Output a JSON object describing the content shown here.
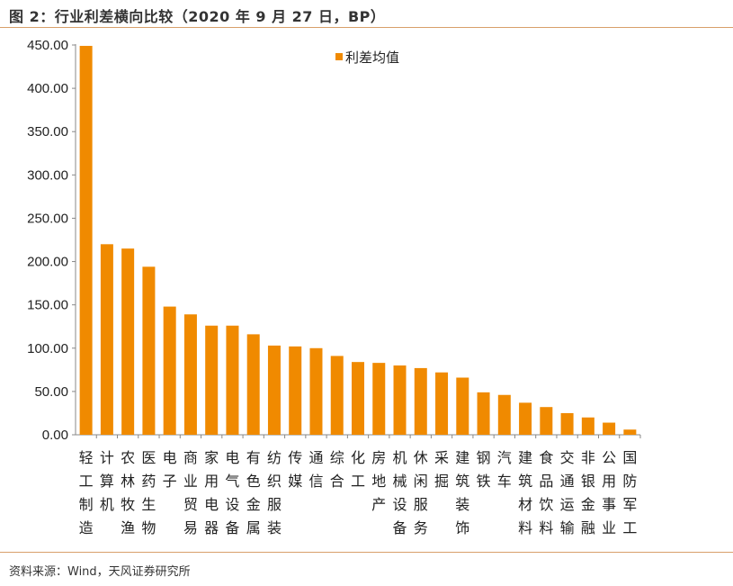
{
  "title": "图 2：行业利差横向比较（2020 年 9 月 27 日，BP）",
  "source": "资料来源：Wind，天风证券研究所",
  "colors": {
    "bar": "#F08A00",
    "rule": "#d8a06a"
  },
  "chart_data": {
    "type": "bar",
    "title": "行业利差横向比较（2020 年 9 月 27 日，BP）",
    "xlabel": "",
    "ylabel": "",
    "ylim": [
      0,
      450
    ],
    "yticks": [
      "0.00",
      "50.00",
      "100.00",
      "150.00",
      "200.00",
      "250.00",
      "300.00",
      "350.00",
      "400.00",
      "450.00"
    ],
    "grid": false,
    "legend": {
      "position": "top-center",
      "entries": [
        "利差均值"
      ]
    },
    "categories": [
      "轻工制造",
      "计算机",
      "农林牧渔",
      "医药生物",
      "电子",
      "商业贸易",
      "家用电器",
      "电气设备",
      "有色金属",
      "纺织服装",
      "传媒",
      "通信",
      "综合",
      "化工",
      "房地产",
      "机械设备",
      "休闲服务",
      "采掘",
      "建筑装饰",
      "钢铁",
      "汽车",
      "建筑材料",
      "食品饮料",
      "交通运输",
      "非银金融",
      "公用事业",
      "国防军工"
    ],
    "series": [
      {
        "name": "利差均值",
        "values": [
          449,
          220,
          215,
          194,
          148,
          139,
          126,
          126,
          116,
          103,
          102,
          100,
          91,
          84,
          83,
          80,
          77,
          72,
          66,
          49,
          46,
          37,
          32,
          25,
          20,
          14,
          6
        ]
      }
    ]
  }
}
